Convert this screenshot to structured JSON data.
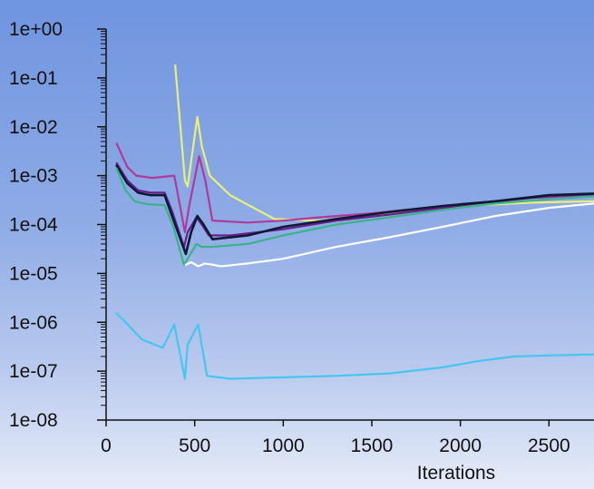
{
  "chart_data": {
    "type": "line",
    "title": "",
    "xlabel": "Iterations",
    "ylabel": "",
    "yscale": "log",
    "xlim": [
      0,
      2800
    ],
    "ylim": [
      1e-08,
      1
    ],
    "x_ticks": [
      0,
      500,
      1000,
      1500,
      2000,
      2500
    ],
    "y_ticks": [
      {
        "value": 1,
        "label": "1e+00"
      },
      {
        "value": 0.1,
        "label": "1e-01"
      },
      {
        "value": 0.01,
        "label": "1e-02"
      },
      {
        "value": 0.001,
        "label": "1e-03"
      },
      {
        "value": 0.0001,
        "label": "1e-04"
      },
      {
        "value": 1e-05,
        "label": "1e-05"
      },
      {
        "value": 1e-06,
        "label": "1e-06"
      },
      {
        "value": 1e-07,
        "label": "1e-07"
      },
      {
        "value": 1e-08,
        "label": "1e-08"
      }
    ],
    "grid": false,
    "series": [
      {
        "color": "#e8f07a",
        "x": [
          390,
          445,
          460,
          515,
          540,
          585,
          700,
          950,
          1200,
          1500,
          1800,
          2100,
          2400,
          2800
        ],
        "y": [
          0.18,
          0.0008,
          0.0006,
          0.016,
          0.004,
          0.001,
          0.0004,
          0.00013,
          0.00012,
          0.00015,
          0.0002,
          0.00025,
          0.00028,
          0.0003
        ]
      },
      {
        "color": "#b03a9c",
        "x": [
          60,
          120,
          170,
          260,
          385,
          445,
          470,
          525,
          560,
          600,
          800,
          1000,
          1200,
          1500,
          1800,
          2100,
          2400,
          2800
        ],
        "y": [
          0.0045,
          0.0015,
          0.001,
          0.0009,
          0.001,
          7e-05,
          0.00025,
          0.0025,
          0.0008,
          0.00012,
          0.00011,
          0.00012,
          0.00014,
          0.00017,
          0.00022,
          0.00027,
          0.00035,
          0.0004
        ]
      },
      {
        "color": "#6a1f8f",
        "x": [
          60,
          120,
          180,
          250,
          330,
          370,
          440,
          460,
          510,
          540,
          580,
          700,
          1000,
          1300,
          1600,
          1900,
          2200,
          2500,
          2800
        ],
        "y": [
          0.0018,
          0.0008,
          0.0005,
          0.00045,
          0.00045,
          0.0002,
          3.5e-05,
          7e-05,
          0.00014,
          0.0001,
          6e-05,
          6e-05,
          8e-05,
          0.00012,
          0.00016,
          0.00022,
          0.0003,
          0.00038,
          0.00042
        ]
      },
      {
        "color": "#0d1a33",
        "x": [
          60,
          120,
          180,
          250,
          330,
          375,
          450,
          480,
          515,
          550,
          600,
          800,
          1000,
          1300,
          1600,
          1900,
          2200,
          2500,
          2800
        ],
        "y": [
          0.0016,
          0.0007,
          0.00045,
          0.0004,
          0.0004,
          0.00014,
          2.5e-05,
          7e-05,
          0.00015,
          0.0001,
          5e-05,
          6e-05,
          9e-05,
          0.00013,
          0.00018,
          0.00024,
          0.0003,
          0.0004,
          0.00043
        ]
      },
      {
        "color": "#3cb38a",
        "x": [
          60,
          110,
          160,
          230,
          330,
          380,
          440,
          460,
          510,
          540,
          600,
          800,
          1000,
          1300,
          1600,
          1900,
          2200,
          2500,
          2800
        ],
        "y": [
          0.0014,
          0.0005,
          0.0003,
          0.00026,
          0.00025,
          9e-05,
          1.5e-05,
          2e-05,
          4e-05,
          3.5e-05,
          3.5e-05,
          4e-05,
          6e-05,
          0.0001,
          0.00014,
          0.0002,
          0.00027,
          0.00033,
          0.00038
        ]
      },
      {
        "color": "#ffffff",
        "x": [
          450,
          480,
          520,
          560,
          650,
          800,
          1000,
          1300,
          1600,
          1900,
          2200,
          2500,
          2800
        ],
        "y": [
          1.5e-05,
          1.7e-05,
          1.4e-05,
          1.6e-05,
          1.4e-05,
          1.6e-05,
          2e-05,
          3.5e-05,
          5.5e-05,
          9e-05,
          0.00015,
          0.00022,
          0.00027
        ]
      },
      {
        "color": "#46c6ee",
        "x": [
          60,
          100,
          200,
          320,
          385,
          445,
          460,
          520,
          570,
          700,
          1000,
          1300,
          1600,
          1900,
          2100,
          2300,
          2500,
          2800
        ],
        "y": [
          1.5e-06,
          1.1e-06,
          4.5e-07,
          3e-07,
          9e-07,
          7e-08,
          3.5e-07,
          9e-07,
          8e-08,
          7e-08,
          7.5e-08,
          8e-08,
          9e-08,
          1.2e-07,
          1.6e-07,
          2e-07,
          2.1e-07,
          2.2e-07
        ]
      }
    ]
  }
}
